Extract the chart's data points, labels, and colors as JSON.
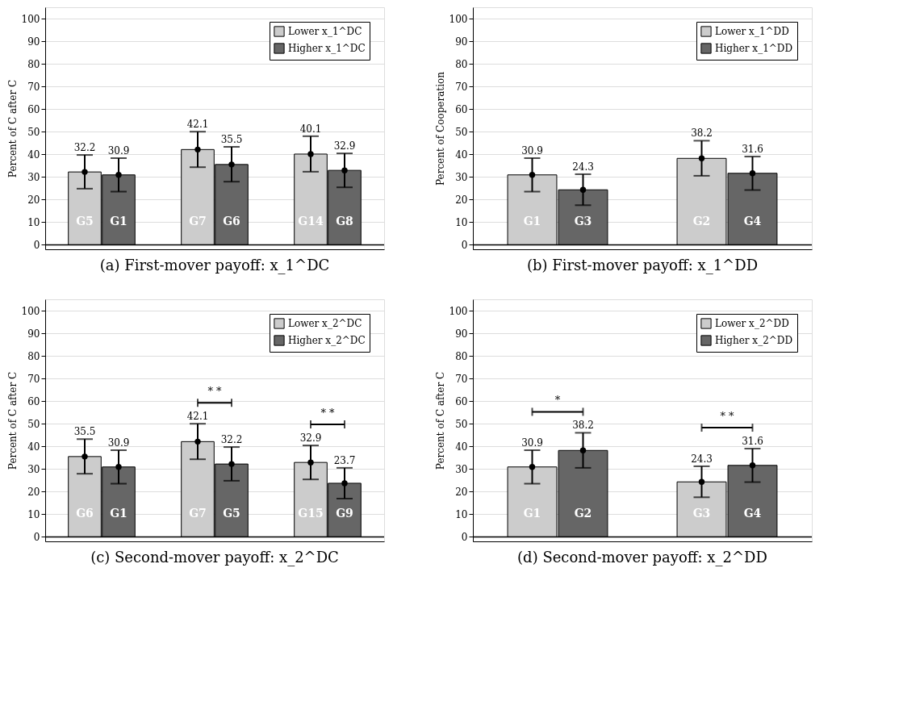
{
  "chart_data": [
    {
      "type": "bar",
      "title": "(a) First-mover payoff: x_1^DC",
      "ylabel": "Percent of C after C",
      "categories": [
        null,
        null,
        null
      ],
      "series": [
        {
          "name": "Lower x_1^DC",
          "color": "#cccccc",
          "values": [
            32.2,
            42.1,
            40.1
          ],
          "value_labels": [
            "32.2",
            "42.1",
            "40.1"
          ],
          "errors": [
            [
              24.8,
              39.7
            ],
            [
              34.3,
              50
            ],
            [
              32.3,
              48
            ]
          ]
        },
        {
          "name": "Higher x_1^DC",
          "color": "#666666",
          "values": [
            30.9,
            35.5,
            32.9
          ],
          "value_labels": [
            "30.9",
            "35.5",
            "32.9"
          ],
          "errors": [
            [
              23.5,
              38.3
            ],
            [
              27.9,
              43.3
            ],
            [
              25.4,
              40.4
            ]
          ]
        },
        {
          "type": "scatter",
          "color": "#000000",
          "values": [
            32.2,
            42.1,
            40.1
          ]
        },
        {
          "type": "scatter",
          "color": "#000000",
          "values": [
            30.9,
            35.5,
            32.9
          ]
        }
      ],
      "annotations": [
        "G5",
        "G1",
        "G7",
        "G6",
        "G14",
        "G8"
      ],
      "ref_lines": [
        {
          "axis": "y",
          "value": 0,
          "color": "#000000"
        }
      ],
      "ylim": [
        -2,
        105
      ],
      "yticks": [
        0,
        10,
        20,
        30,
        40,
        50,
        60,
        70,
        80,
        90,
        100
      ],
      "grid": "y",
      "legend": "top right",
      "tick_labels": "y"
    },
    {
      "type": "bar",
      "title": "(b) First-mover payoff: x_1^DD",
      "ylabel": "Percent of Cooperation",
      "categories": [
        null,
        null
      ],
      "series": [
        {
          "name": "Lower x_1^DD",
          "color": "#cccccc",
          "values": [
            30.9,
            38.2
          ],
          "value_labels": [
            "30.9",
            "38.2"
          ],
          "errors": [
            [
              23.5,
              38.3
            ],
            [
              30.5,
              46
            ]
          ]
        },
        {
          "name": "Higher x_1^DD",
          "color": "#666666",
          "values": [
            24.3,
            31.6
          ],
          "value_labels": [
            "24.3",
            "31.6"
          ],
          "errors": [
            [
              17.5,
              31.2
            ],
            [
              24.2,
              39
            ]
          ]
        },
        {
          "type": "scatter",
          "color": "#000000",
          "values": [
            30.9,
            38.2
          ]
        },
        {
          "type": "scatter",
          "color": "#000000",
          "values": [
            24.3,
            31.6
          ]
        }
      ],
      "annotations": [
        "G1",
        "G3",
        "G2",
        "G4"
      ],
      "ref_lines": [
        {
          "axis": "y",
          "value": 0,
          "color": "#000000"
        }
      ],
      "ylim": [
        -2,
        105
      ],
      "yticks": [
        0,
        10,
        20,
        30,
        40,
        50,
        60,
        70,
        80,
        90,
        100
      ],
      "grid": "y",
      "legend": "top right",
      "tick_labels": "y"
    },
    {
      "type": "bar",
      "title": "(c) Second-mover payoff: x_2^DC",
      "ylabel": "Percent of C after C",
      "categories": [
        null,
        null,
        null
      ],
      "series": [
        {
          "name": "Lower x_2^DC",
          "color": "#cccccc",
          "values": [
            35.5,
            42.1,
            32.9
          ],
          "value_labels": [
            "35.5",
            "42.1",
            "32.9"
          ],
          "errors": [
            [
              27.9,
              43.2
            ],
            [
              34.3,
              50
            ],
            [
              25.4,
              40.4
            ]
          ]
        },
        {
          "name": "Higher x_2^DC",
          "color": "#666666",
          "values": [
            30.9,
            32.2,
            23.7
          ],
          "value_labels": [
            "30.9",
            "32.2",
            "23.7"
          ],
          "errors": [
            [
              23.5,
              38.3
            ],
            [
              24.8,
              39.7
            ],
            [
              16.9,
              30.5
            ]
          ]
        },
        {
          "type": "scatter",
          "color": "#000000",
          "values": [
            35.5,
            42.1,
            32.9
          ]
        },
        {
          "type": "scatter",
          "color": "#000000",
          "values": [
            30.9,
            32.2,
            23.7
          ]
        }
      ],
      "annotations": [
        "G6",
        "G1",
        "G7",
        "G5",
        "G15",
        "G9",
        "* *",
        "* *"
      ],
      "ref_lines": [
        {
          "axis": "y",
          "value": 0,
          "color": "#000000"
        }
      ],
      "ylim": [
        -2,
        105
      ],
      "yticks": [
        0,
        10,
        20,
        30,
        40,
        50,
        60,
        70,
        80,
        90,
        100
      ],
      "grid": "y",
      "legend": "top right",
      "tick_labels": "y"
    },
    {
      "type": "bar",
      "title": "(d) Second-mover payoff: x_2^DD",
      "ylabel": "Percent of C after C",
      "categories": [
        null,
        null
      ],
      "series": [
        {
          "name": "Lower x_2^DD",
          "color": "#cccccc",
          "values": [
            30.9,
            24.3
          ],
          "value_labels": [
            "30.9",
            "24.3"
          ],
          "errors": [
            [
              23.5,
              38.3
            ],
            [
              17.5,
              31.2
            ]
          ]
        },
        {
          "name": "Higher x_2^DD",
          "color": "#666666",
          "values": [
            38.2,
            31.6
          ],
          "value_labels": [
            "38.2",
            "31.6"
          ],
          "errors": [
            [
              30.5,
              46
            ],
            [
              24.2,
              39
            ]
          ]
        },
        {
          "type": "scatter",
          "color": "#000000",
          "values": [
            30.9,
            24.3
          ]
        },
        {
          "type": "scatter",
          "color": "#000000",
          "values": [
            38.2,
            31.6
          ]
        }
      ],
      "annotations": [
        "G1",
        "G2",
        "G3",
        "G4",
        "*",
        "* *"
      ],
      "ref_lines": [
        {
          "axis": "y",
          "value": 0,
          "color": "#000000"
        }
      ],
      "ylim": [
        -2,
        105
      ],
      "yticks": [
        0,
        10,
        20,
        30,
        40,
        50,
        60,
        70,
        80,
        90,
        100
      ],
      "grid": "y",
      "legend": "top right",
      "tick_labels": "y"
    }
  ]
}
